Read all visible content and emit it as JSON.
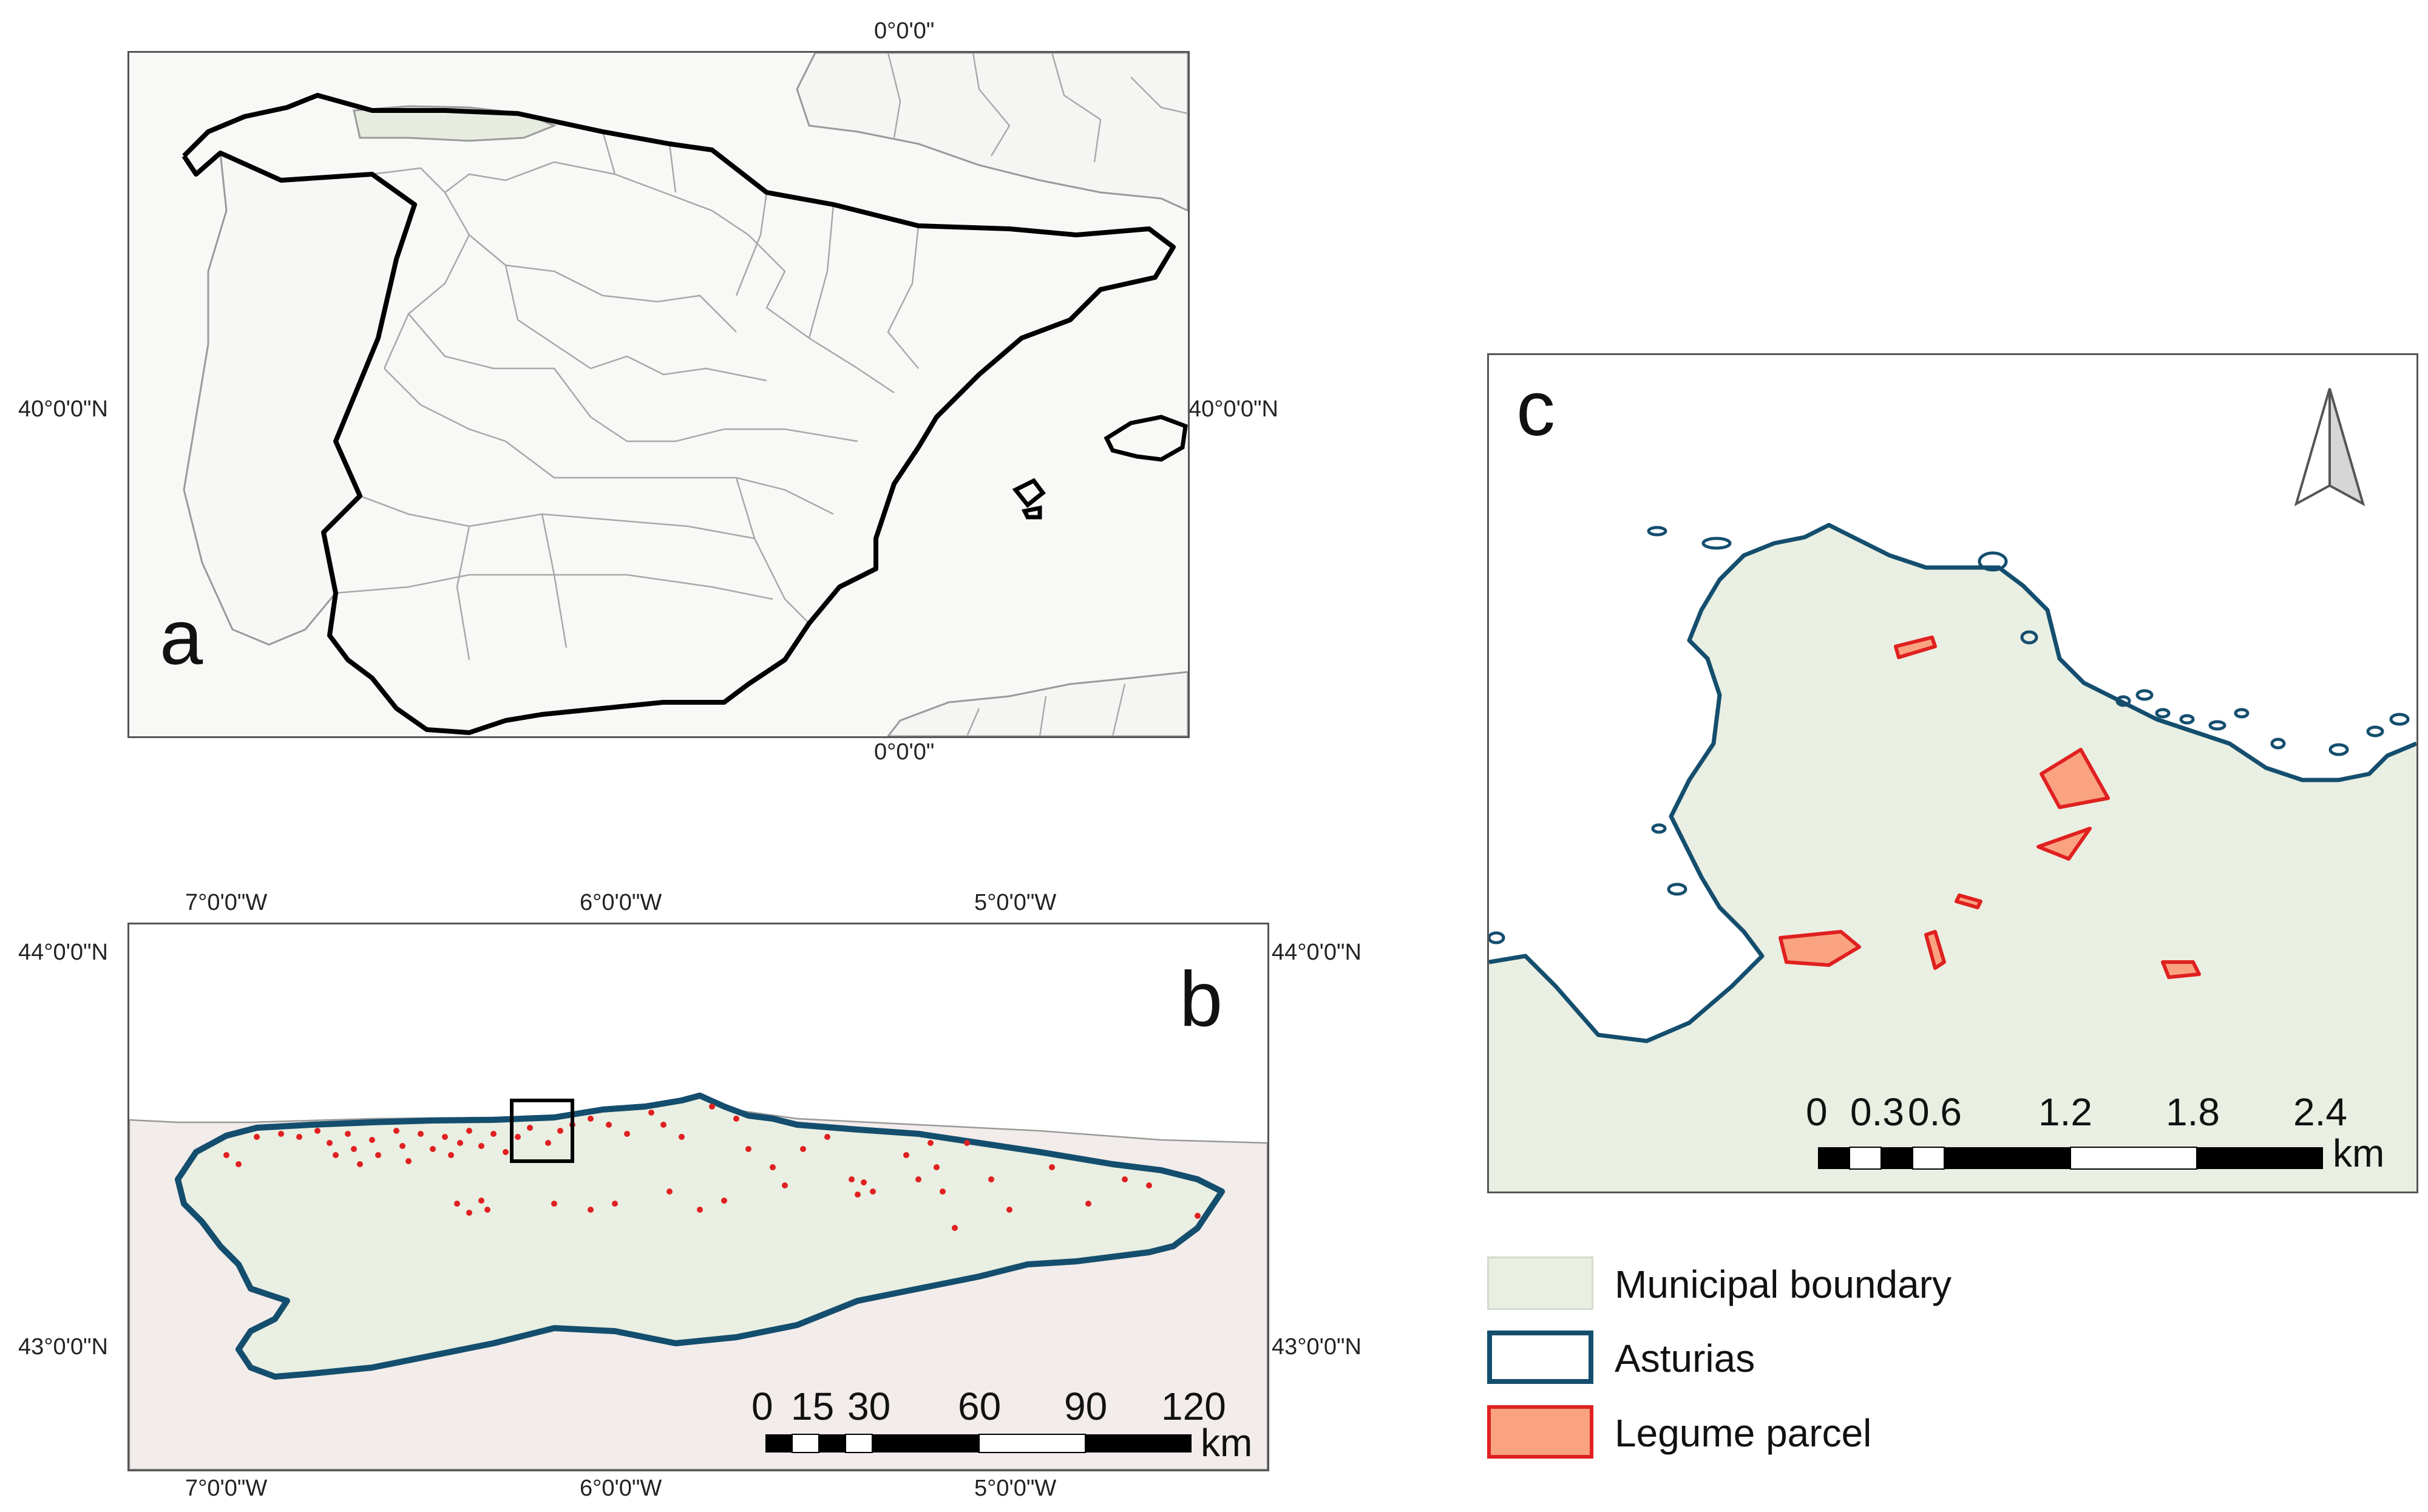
{
  "panel_a": {
    "letter": "a",
    "top_label": "0°0'0\"",
    "bottom_label": "0°0'0\"",
    "left_label": "40°0'0\"N",
    "right_label": "40°0'0\"N"
  },
  "panel_b": {
    "letter": "b",
    "top_labels": [
      "7°0'0\"W",
      "6°0'0\"W",
      "5°0'0\"W"
    ],
    "bottom_labels": [
      "7°0'0\"W",
      "6°0'0\"W",
      "5°0'0\"W"
    ],
    "left_labels": [
      "44°0'0\"N",
      "43°0'0\"N"
    ],
    "right_labels": [
      "44°0'0\"N",
      "43°0'0\"N"
    ],
    "scale": {
      "ticks": [
        "0",
        "15",
        "30",
        "60",
        "90",
        "120"
      ],
      "unit": "km"
    }
  },
  "panel_c": {
    "letter": "c",
    "scale": {
      "ticks": [
        "0",
        "0.3",
        "0.6",
        "1.2",
        "1.8",
        "2.4"
      ],
      "unit": "km"
    },
    "north_arrow": "north-arrow-icon"
  },
  "legend": {
    "items": [
      {
        "label": "Municipal boundary",
        "fill": "#e9efe2",
        "stroke": "#cfd6c8"
      },
      {
        "label": "Asturias",
        "fill": "#ffffff",
        "stroke": "#144e6e"
      },
      {
        "label": "Legume parcel",
        "fill": "#f9a383",
        "stroke": "#e02020"
      }
    ]
  },
  "colors": {
    "asturias_outline": "#144e6e",
    "parcel_red": "#e02020",
    "land_fill": "#e9efe2",
    "sea_band": "#f2eceb"
  }
}
